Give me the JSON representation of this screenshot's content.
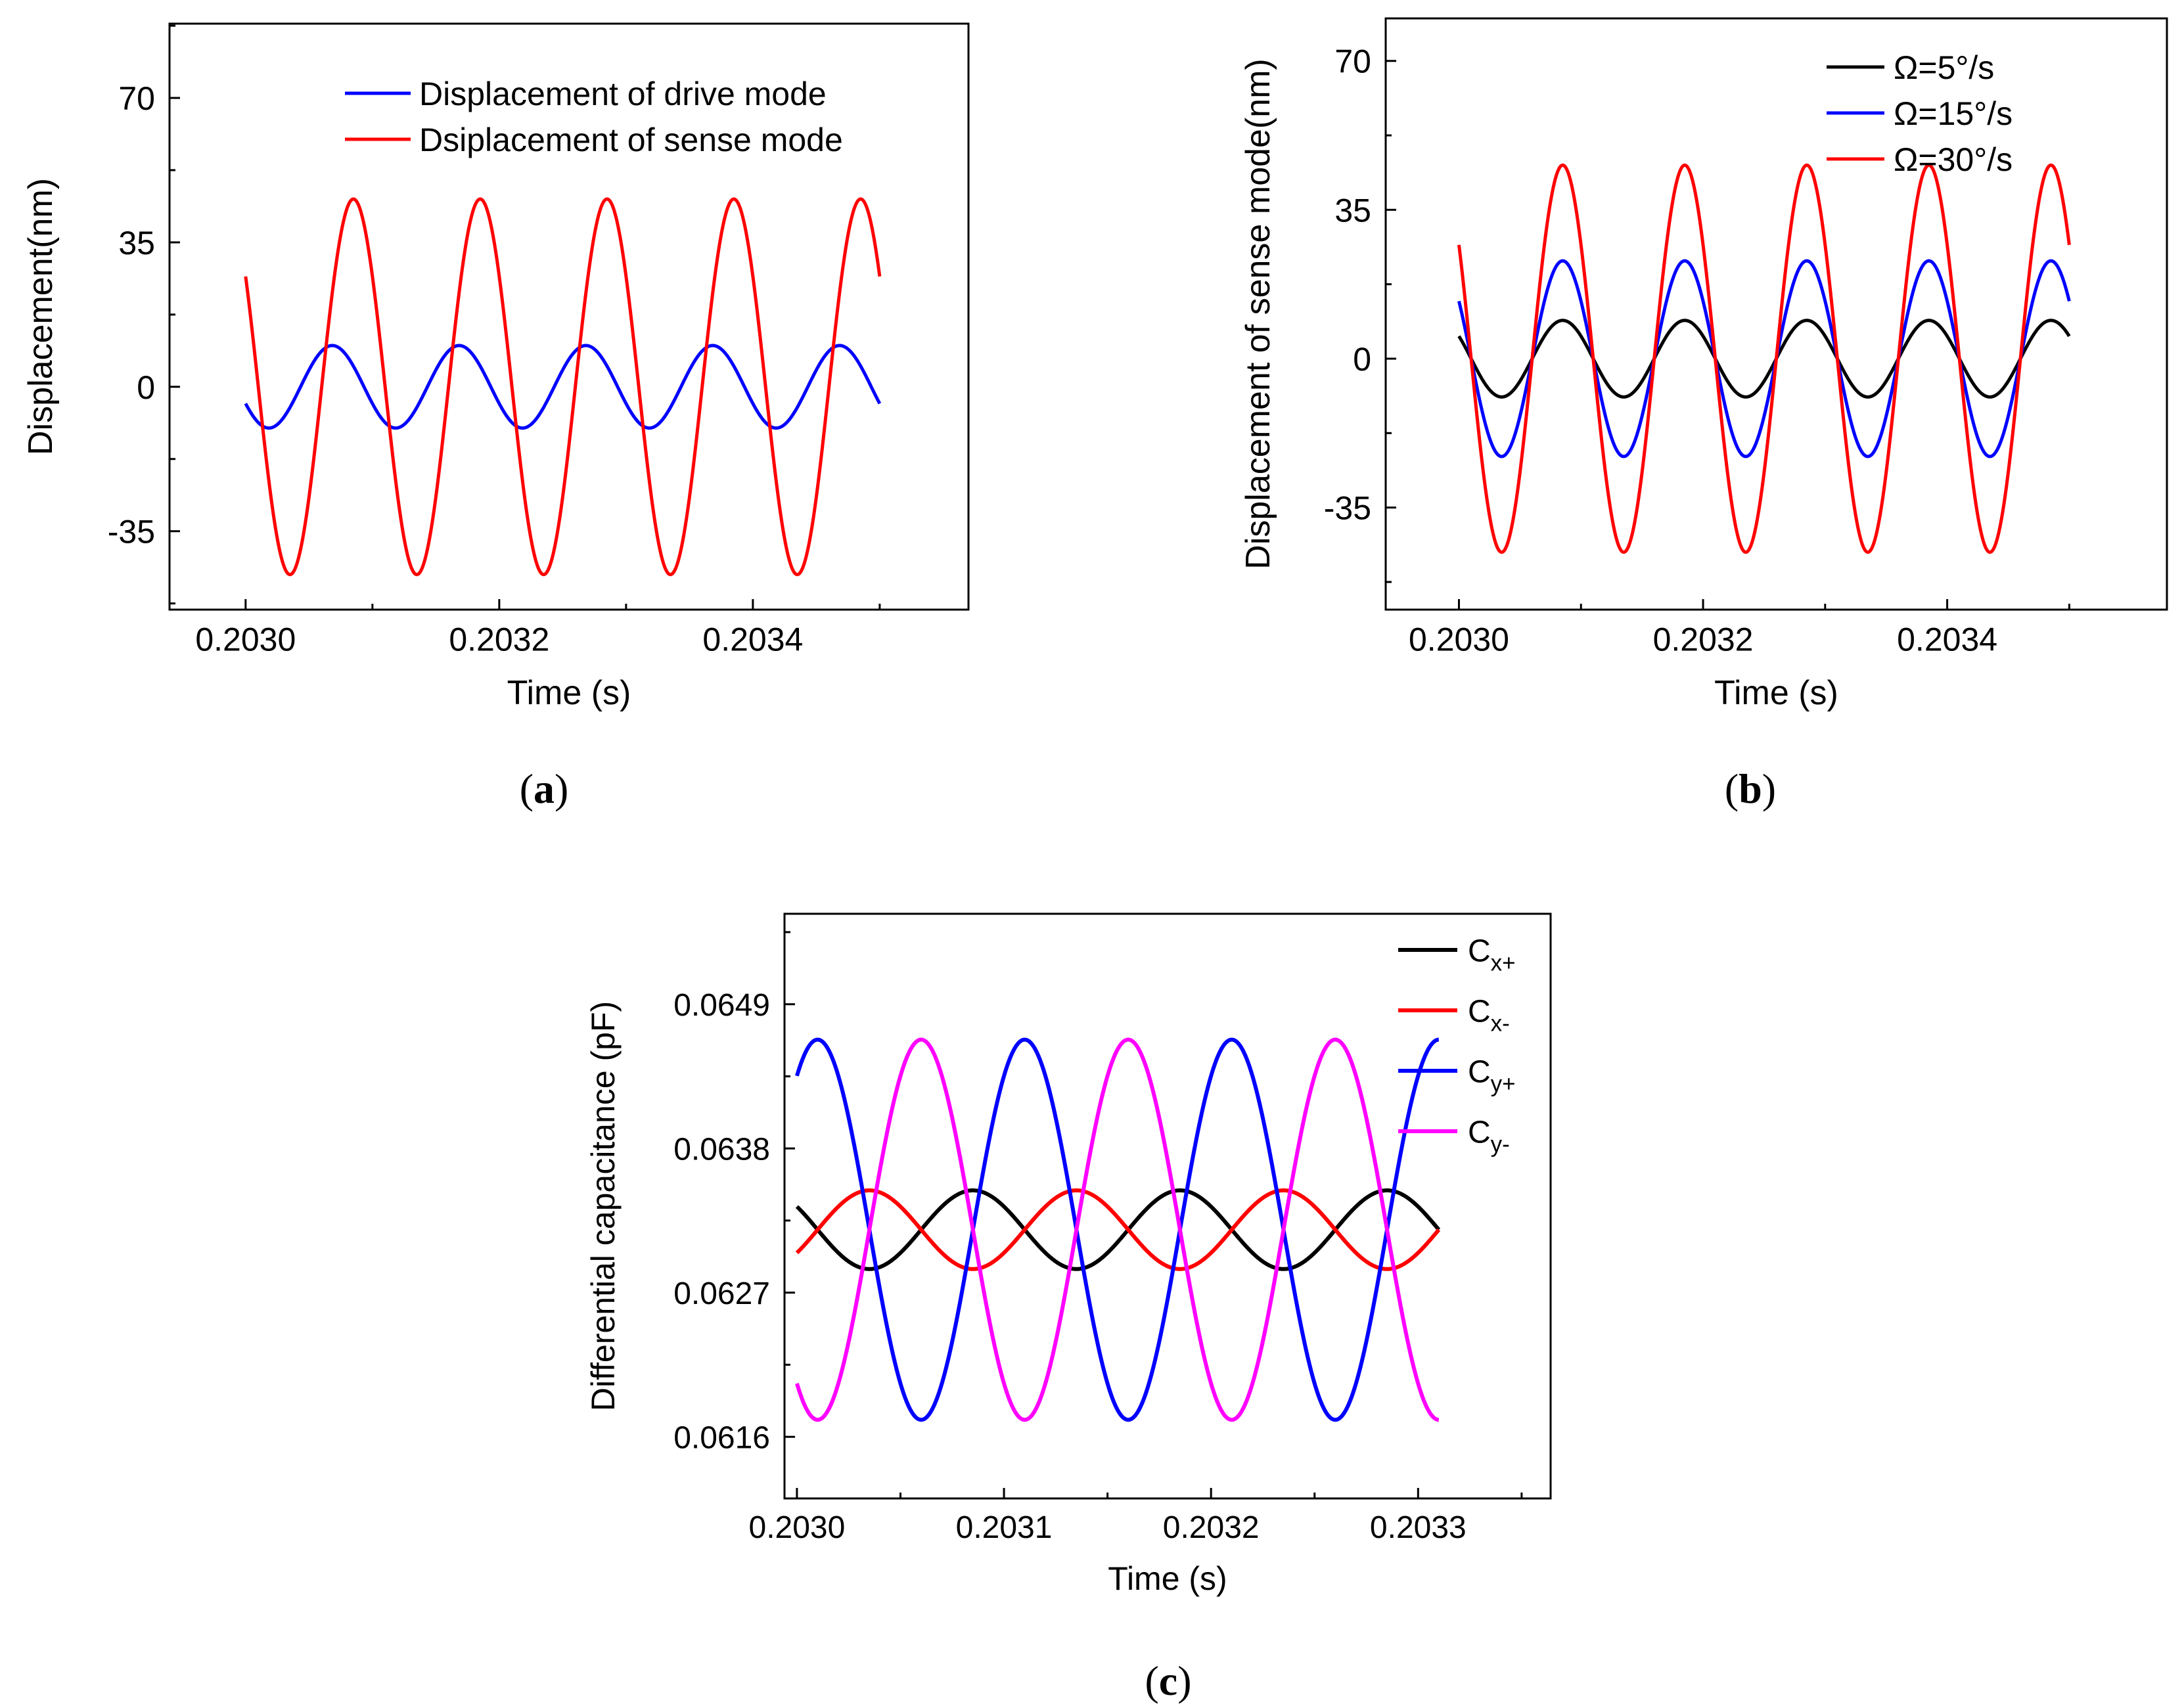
{
  "panels": [
    {
      "label": "(a)",
      "label_letter": "a",
      "chart_data": {
        "type": "line",
        "title": "",
        "xlabel": "Time (s)",
        "ylabel": "Displacement(nm)",
        "xlim": [
          0.20294,
          0.20357
        ],
        "ylim": [
          -54,
          88
        ],
        "xticks": [
          0.203,
          0.2032,
          0.2034
        ],
        "xtick_labels": [
          "0.2030",
          "0.2032",
          "0.2034"
        ],
        "yticks": [
          -35,
          0,
          35,
          70
        ],
        "ytick_labels": [
          "-35",
          "0",
          "35",
          "70"
        ],
        "x_range": [
          0.203,
          0.2035
        ],
        "period": 0.0001,
        "legend": "top-right",
        "series": [
          {
            "name": "Displacement of drive mode",
            "color": "#0000ff",
            "amplitude": 10,
            "phase_deg": -156,
            "offset": 0
          },
          {
            "name": "Dsiplacement of sense mode",
            "color": "#ff0000",
            "amplitude": 45.5,
            "phase_deg": 144,
            "offset": 0
          }
        ]
      }
    },
    {
      "label": "(b)",
      "label_letter": "b",
      "chart_data": {
        "type": "line",
        "title": "",
        "xlabel": "Time (s)",
        "ylabel": "Displacement of sense mode(nm)",
        "xlim": [
          0.20294,
          0.20358
        ],
        "ylim": [
          -59,
          80
        ],
        "xticks": [
          0.203,
          0.2032,
          0.2034
        ],
        "xtick_labels": [
          "0.2030",
          "0.2032",
          "0.2034"
        ],
        "yticks": [
          -35,
          0,
          35,
          70
        ],
        "ytick_labels": [
          "-35",
          "0",
          "35",
          "70"
        ],
        "x_range": [
          0.203,
          0.2035
        ],
        "period": 0.0001,
        "legend": "top-right",
        "series": [
          {
            "name": "Ω=5°/s",
            "color": "#000000",
            "amplitude": 9,
            "phase_deg": 144,
            "offset": 0
          },
          {
            "name": "Ω=15°/s",
            "color": "#0000ff",
            "amplitude": 23,
            "phase_deg": 144,
            "offset": 0
          },
          {
            "name": "Ω=30°/s",
            "color": "#ff0000",
            "amplitude": 45.5,
            "phase_deg": 144,
            "offset": 0
          }
        ]
      }
    },
    {
      "label": "(c)",
      "label_letter": "c",
      "chart_data": {
        "type": "line",
        "title": "",
        "xlabel": "Time (s)",
        "ylabel": "Differential capacitance (pF)",
        "xlim": [
          0.202994,
          0.203364
        ],
        "ylim": [
          0.06113,
          0.06559
        ],
        "xticks": [
          0.203,
          0.2031,
          0.2032,
          0.2033
        ],
        "xtick_labels": [
          "0.2030",
          "0.2031",
          "0.2032",
          "0.2033"
        ],
        "yticks": [
          0.0616,
          0.0627,
          0.0638,
          0.0649
        ],
        "ytick_labels": [
          "0.0616",
          "0.0627",
          "0.0638",
          "0.0649"
        ],
        "x_range": [
          0.203,
          0.20331
        ],
        "period": 0.0001,
        "legend": "top-right",
        "series": [
          {
            "name": "C",
            "sub": "x+",
            "color": "#000000",
            "amplitude": 0.0003,
            "phase_deg": 144,
            "offset": 0.06318
          },
          {
            "name": "C",
            "sub": "x-",
            "color": "#ff0000",
            "amplitude": 0.0003,
            "phase_deg": -36,
            "offset": 0.06318
          },
          {
            "name": "C",
            "sub": "y+",
            "color": "#0000ff",
            "amplitude": 0.00145,
            "phase_deg": 54,
            "offset": 0.06318
          },
          {
            "name": "C",
            "sub": "y-",
            "color": "#ff00ff",
            "amplitude": 0.00145,
            "phase_deg": -126,
            "offset": 0.06318
          }
        ]
      }
    }
  ]
}
